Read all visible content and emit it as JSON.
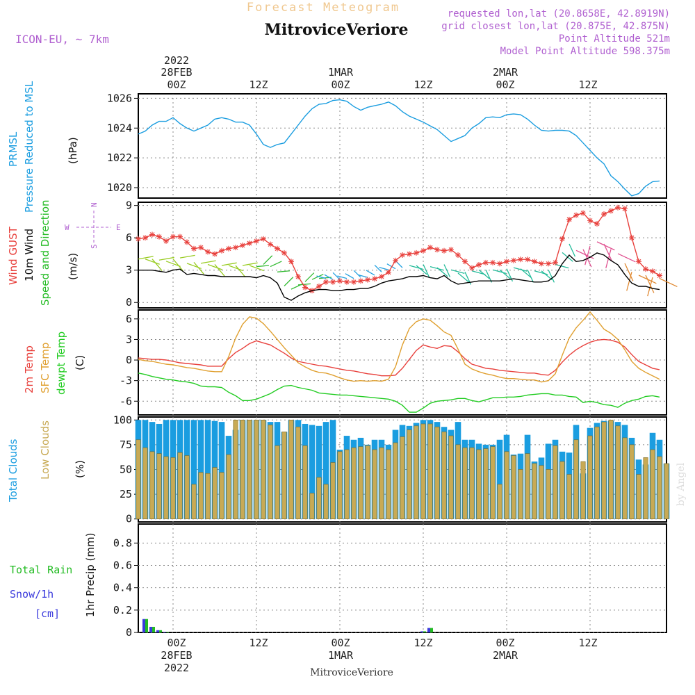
{
  "header": {
    "faint_title": "Forecast Meteogram",
    "station": "MitroviceVeriore",
    "model": "ICON-EU, ~ 7km",
    "requested": "requested lon,lat (20.8658E, 42.8919N)",
    "closest": "grid closest lon,lat (20.875E, 42.875N)",
    "point_alt": "Point Altitude 521m",
    "model_alt": "Model Point Altitude 598.375m",
    "credit": "by Angel",
    "footer_station": "MitroviceVeriore"
  },
  "colors": {
    "pressure": "#1a9de0",
    "gust": "#e8403c",
    "wind": "#000000",
    "dir": "#22bb22",
    "temp": "#e8403c",
    "sfc": "#e0a030",
    "dewpt": "#22cc22",
    "total_cloud": "#1a9de0",
    "low_cloud": "#c8aa55",
    "rain": "#22bb22",
    "snow": "#3a3adc",
    "header_purple": "#b060d0",
    "faint": "#f0c890"
  },
  "time_axis": {
    "top_year": "2022",
    "day1": "28FEB",
    "day2": "1MAR",
    "day3": "2MAR",
    "ticks": [
      "00Z",
      "12Z",
      "00Z",
      "12Z",
      "00Z",
      "12Z"
    ],
    "tick_hours": [
      0,
      12,
      24,
      36,
      48,
      60
    ],
    "start_hour": -5,
    "end_hour": 71
  },
  "chart_data": [
    {
      "type": "line",
      "panel": "pressure",
      "title": "Pressure Reduced to MSL",
      "ylabel_lines": [
        "PRMSL",
        "Pressure Reduced to MSL"
      ],
      "units": "(hPa)",
      "ylim": [
        1019.3,
        1026.3
      ],
      "yticks": [
        1020,
        1022,
        1024,
        1026
      ],
      "x": [
        -5,
        -4,
        -3,
        -2,
        -1,
        0,
        1,
        2,
        3,
        4,
        5,
        6,
        7,
        8,
        9,
        10,
        11,
        12,
        13,
        14,
        15,
        16,
        17,
        18,
        19,
        20,
        21,
        22,
        23,
        24,
        25,
        26,
        27,
        28,
        29,
        30,
        31,
        32,
        33,
        34,
        35,
        36,
        37,
        38,
        39,
        40,
        41,
        42,
        43,
        44,
        45,
        46,
        47,
        48,
        49,
        50,
        51,
        52,
        53,
        54,
        55,
        56,
        57,
        58,
        59,
        60,
        61,
        62,
        63,
        64,
        65,
        66,
        67,
        68,
        69,
        70
      ],
      "series": [
        {
          "name": "PRMSL",
          "values": [
            1023.6,
            1023.8,
            1024.2,
            1024.45,
            1024.45,
            1024.7,
            1024.3,
            1024.0,
            1023.8,
            1024.0,
            1024.2,
            1024.6,
            1024.7,
            1024.6,
            1024.4,
            1024.4,
            1024.2,
            1023.6,
            1022.9,
            1022.7,
            1022.9,
            1023.0,
            1023.6,
            1024.2,
            1024.8,
            1025.3,
            1025.6,
            1025.65,
            1025.85,
            1025.9,
            1025.8,
            1025.45,
            1025.2,
            1025.4,
            1025.5,
            1025.6,
            1025.75,
            1025.5,
            1025.1,
            1024.8,
            1024.6,
            1024.4,
            1024.15,
            1023.9,
            1023.5,
            1023.1,
            1023.3,
            1023.5,
            1024.0,
            1024.3,
            1024.7,
            1024.75,
            1024.7,
            1024.9,
            1024.95,
            1024.9,
            1024.6,
            1024.2,
            1023.85,
            1023.8,
            1023.85,
            1023.85,
            1023.8,
            1023.5,
            1023.0,
            1022.5,
            1022.0,
            1021.6,
            1020.8,
            1020.4,
            1019.9,
            1019.45,
            1019.6,
            1020.1,
            1020.4,
            1020.45
          ]
        }
      ]
    },
    {
      "type": "line",
      "panel": "wind",
      "title": "10m Wind Speed and Direction",
      "ylabel_gust": "Wind GUST",
      "ylabel_wind": "10m Wind",
      "ylabel_dir": "Speed and Direction",
      "units": "(m/s)",
      "compass": {
        "n": "N",
        "s": "S",
        "w": "W",
        "e": "E"
      },
      "ylim": [
        -0.5,
        9.3
      ],
      "yticks": [
        0,
        3,
        6,
        9
      ],
      "x": [
        -5,
        -4,
        -3,
        -2,
        -1,
        0,
        1,
        2,
        3,
        4,
        5,
        6,
        7,
        8,
        9,
        10,
        11,
        12,
        13,
        14,
        15,
        16,
        17,
        18,
        19,
        20,
        21,
        22,
        23,
        24,
        25,
        26,
        27,
        28,
        29,
        30,
        31,
        32,
        33,
        34,
        35,
        36,
        37,
        38,
        39,
        40,
        41,
        42,
        43,
        44,
        45,
        46,
        47,
        48,
        49,
        50,
        51,
        52,
        53,
        54,
        55,
        56,
        57,
        58,
        59,
        60,
        61,
        62,
        63,
        64,
        65,
        66,
        67,
        68,
        69,
        70
      ],
      "series": [
        {
          "name": "Wind GUST",
          "values": [
            5.9,
            6.0,
            6.3,
            6.1,
            5.7,
            6.1,
            6.1,
            5.6,
            5.0,
            5.1,
            4.7,
            4.5,
            4.8,
            5.0,
            5.1,
            5.3,
            5.5,
            5.7,
            5.9,
            5.4,
            5.0,
            4.6,
            3.8,
            2.4,
            1.4,
            1.1,
            1.5,
            1.9,
            1.9,
            2.0,
            1.9,
            1.9,
            2.0,
            2.1,
            2.2,
            2.4,
            2.8,
            3.9,
            4.4,
            4.5,
            4.6,
            4.8,
            5.1,
            4.9,
            4.8,
            4.9,
            4.4,
            3.8,
            3.2,
            3.5,
            3.7,
            3.7,
            3.6,
            3.8,
            3.9,
            4.0,
            4.0,
            3.8,
            3.6,
            3.6,
            3.7,
            5.9,
            7.7,
            8.1,
            8.3,
            7.6,
            7.3,
            8.2,
            8.5,
            8.8,
            8.7,
            6.0,
            3.8,
            3.1,
            2.9,
            2.5
          ]
        },
        {
          "name": "10m Wind",
          "values": [
            3.0,
            3.0,
            3.0,
            2.9,
            2.8,
            3.0,
            3.1,
            2.6,
            2.7,
            2.6,
            2.5,
            2.5,
            2.4,
            2.4,
            2.4,
            2.4,
            2.4,
            2.3,
            2.5,
            2.3,
            1.8,
            0.5,
            0.2,
            0.6,
            0.9,
            1.1,
            1.2,
            1.2,
            1.1,
            1.1,
            1.2,
            1.2,
            1.3,
            1.3,
            1.5,
            1.8,
            2.0,
            2.1,
            2.2,
            2.4,
            2.4,
            2.5,
            2.3,
            2.2,
            2.5,
            2.0,
            1.7,
            1.8,
            1.9,
            2.0,
            2.0,
            2.0,
            2.0,
            2.1,
            2.2,
            2.1,
            2.0,
            1.9,
            1.9,
            2.0,
            2.5,
            3.6,
            4.4,
            3.8,
            3.9,
            4.2,
            4.6,
            4.4,
            3.9,
            3.5,
            2.6,
            1.8,
            1.5,
            1.5,
            1.3,
            1.2
          ]
        }
      ]
    },
    {
      "type": "line",
      "panel": "temp",
      "title": "2m Temp / SFC Temp / dewpt Temp",
      "ylabel_t2m": "2m Temp",
      "ylabel_sfc": "SFC Temp",
      "ylabel_dew": "dewpt Temp",
      "units": "(C)",
      "ylim": [
        -8,
        7.3
      ],
      "yticks": [
        -6,
        -3,
        0,
        3,
        6
      ],
      "ytick_labels": [
        "-6",
        "-3",
        "0",
        "3",
        "6"
      ],
      "x": [
        -5,
        -4,
        -3,
        -2,
        -1,
        0,
        1,
        2,
        3,
        4,
        5,
        6,
        7,
        8,
        9,
        10,
        11,
        12,
        13,
        14,
        15,
        16,
        17,
        18,
        19,
        20,
        21,
        22,
        23,
        24,
        25,
        26,
        27,
        28,
        29,
        30,
        31,
        32,
        33,
        34,
        35,
        36,
        37,
        38,
        39,
        40,
        41,
        42,
        43,
        44,
        45,
        46,
        47,
        48,
        49,
        50,
        51,
        52,
        53,
        54,
        55,
        56,
        57,
        58,
        59,
        60,
        61,
        62,
        63,
        64,
        65,
        66,
        67,
        68,
        69,
        70
      ],
      "series": [
        {
          "name": "2m Temp",
          "values": [
            0.3,
            0.2,
            0.1,
            0.1,
            0.0,
            -0.2,
            -0.4,
            -0.5,
            -0.6,
            -0.7,
            -0.9,
            -0.9,
            -0.9,
            0.2,
            1.1,
            1.7,
            2.4,
            2.8,
            2.5,
            2.2,
            1.6,
            1.0,
            0.3,
            -0.2,
            -0.4,
            -0.6,
            -0.8,
            -0.9,
            -1.1,
            -1.3,
            -1.5,
            -1.6,
            -1.8,
            -2.0,
            -2.1,
            -2.3,
            -2.3,
            -2.2,
            -1.2,
            0.1,
            1.4,
            2.2,
            1.9,
            1.7,
            2.1,
            2.0,
            1.2,
            0.2,
            -0.6,
            -0.9,
            -1.2,
            -1.3,
            -1.5,
            -1.6,
            -1.7,
            -1.8,
            -1.9,
            -1.9,
            -2.1,
            -2.2,
            -1.5,
            -0.3,
            0.7,
            1.5,
            2.1,
            2.6,
            2.9,
            3.0,
            2.9,
            2.6,
            1.9,
            0.8,
            -0.2,
            -0.7,
            -1.2,
            -1.4
          ]
        },
        {
          "name": "SFC Temp",
          "values": [
            0.1,
            -0.1,
            -0.2,
            -0.4,
            -0.6,
            -0.7,
            -0.9,
            -1.1,
            -1.2,
            -1.4,
            -1.6,
            -1.7,
            -1.7,
            0.5,
            3.2,
            5.2,
            6.3,
            6.1,
            5.3,
            4.2,
            3.0,
            1.8,
            0.7,
            -0.4,
            -1.0,
            -1.5,
            -1.8,
            -1.9,
            -2.2,
            -2.6,
            -2.9,
            -3.1,
            -3.0,
            -3.1,
            -3.0,
            -3.1,
            -2.8,
            -1.0,
            2.2,
            4.6,
            5.6,
            6.0,
            5.8,
            5.0,
            4.1,
            3.6,
            1.6,
            -0.6,
            -1.3,
            -1.7,
            -2.0,
            -2.2,
            -2.5,
            -2.7,
            -2.7,
            -2.8,
            -2.9,
            -2.9,
            -3.2,
            -3.0,
            -2.0,
            0.7,
            3.2,
            4.7,
            5.8,
            7.0,
            5.8,
            4.5,
            3.9,
            3.0,
            1.5,
            -0.2,
            -1.2,
            -1.8,
            -2.3,
            -2.8
          ]
        },
        {
          "name": "dewpt Temp",
          "values": [
            -1.9,
            -2.1,
            -2.4,
            -2.6,
            -2.8,
            -2.9,
            -3.1,
            -3.2,
            -3.4,
            -3.8,
            -3.9,
            -3.9,
            -4.0,
            -4.7,
            -5.2,
            -5.9,
            -5.9,
            -5.7,
            -5.3,
            -4.9,
            -4.3,
            -3.8,
            -3.7,
            -4.0,
            -4.2,
            -4.4,
            -4.8,
            -4.9,
            -5.0,
            -5.1,
            -5.1,
            -5.2,
            -5.3,
            -5.4,
            -5.5,
            -5.6,
            -5.7,
            -6.0,
            -6.6,
            -7.6,
            -7.6,
            -7.0,
            -6.3,
            -6.0,
            -5.9,
            -5.8,
            -5.6,
            -5.6,
            -5.9,
            -6.1,
            -5.8,
            -5.5,
            -5.5,
            -5.4,
            -5.4,
            -5.3,
            -5.1,
            -5.0,
            -4.9,
            -4.9,
            -5.1,
            -5.1,
            -5.3,
            -5.4,
            -6.2,
            -6.0,
            -6.2,
            -6.5,
            -6.6,
            -6.9,
            -6.3,
            -5.9,
            -5.7,
            -5.3,
            -5.2,
            -5.4
          ]
        }
      ]
    },
    {
      "type": "bar",
      "panel": "clouds",
      "title": "Total Clouds / Low Clouds",
      "ylabel_total": "Total Clouds",
      "ylabel_low": "Low Clouds",
      "units": "(%)",
      "ylim": [
        -3,
        103
      ],
      "yticks": [
        0,
        25,
        50,
        75,
        100
      ],
      "x": [
        -5,
        -4,
        -3,
        -2,
        -1,
        0,
        1,
        2,
        3,
        4,
        5,
        6,
        7,
        8,
        9,
        10,
        11,
        12,
        13,
        14,
        15,
        16,
        17,
        18,
        19,
        20,
        21,
        22,
        23,
        24,
        25,
        26,
        27,
        28,
        29,
        30,
        31,
        32,
        33,
        34,
        35,
        36,
        37,
        38,
        39,
        40,
        41,
        42,
        43,
        44,
        45,
        46,
        47,
        48,
        49,
        50,
        51,
        52,
        53,
        54,
        55,
        56,
        57,
        58,
        59,
        60,
        61,
        62,
        63,
        64,
        65,
        66,
        67,
        68,
        69,
        70,
        71
      ],
      "series": [
        {
          "name": "Total Clouds",
          "values": [
            100,
            100,
            98,
            96,
            100,
            100,
            100,
            100,
            100,
            100,
            100,
            99,
            98,
            84,
            90,
            100,
            100,
            100,
            100,
            98,
            98,
            88,
            100,
            100,
            96,
            95,
            94,
            98,
            100,
            70,
            84,
            80,
            82,
            75,
            80,
            80,
            75,
            90,
            95,
            94,
            97,
            100,
            100,
            98,
            93,
            90,
            98,
            80,
            80,
            76,
            75,
            75,
            80,
            85,
            65,
            66,
            85,
            58,
            62,
            76,
            80,
            68,
            67,
            95,
            46,
            92,
            97,
            99,
            99,
            98,
            95,
            82,
            60,
            55,
            87,
            80,
            56
          ]
        },
        {
          "name": "Low Clouds",
          "values": [
            80,
            72,
            68,
            66,
            63,
            62,
            67,
            64,
            35,
            47,
            46,
            52,
            47,
            65,
            100,
            100,
            100,
            100,
            100,
            95,
            74,
            88,
            100,
            93,
            74,
            26,
            42,
            35,
            57,
            68,
            70,
            72,
            73,
            74,
            70,
            72,
            70,
            77,
            83,
            90,
            94,
            96,
            96,
            93,
            88,
            84,
            75,
            72,
            72,
            70,
            71,
            73,
            35,
            68,
            64,
            50,
            66,
            56,
            54,
            50,
            74,
            58,
            45,
            80,
            58,
            84,
            93,
            98,
            100,
            94,
            82,
            75,
            45,
            62,
            70,
            63,
            56
          ]
        }
      ]
    },
    {
      "type": "bar",
      "panel": "precip",
      "title": "1hr Precip (mm)",
      "ylabel": "1hr Precip (mm)",
      "legend_rain": "Total Rain",
      "legend_snow": "Snow/1h",
      "legend_snow_unit": "[cm]",
      "ylim": [
        0,
        0.97
      ],
      "yticks": [
        0,
        0.2,
        0.4,
        0.6,
        0.8
      ],
      "ytick_labels": [
        "0",
        "0.2",
        "0.4",
        "0.6",
        "0.8"
      ],
      "x": [
        -4,
        -3,
        -2,
        -1,
        36,
        37
      ],
      "series": [
        {
          "name": "Total Rain",
          "values": [
            0.12,
            0.05,
            0.02,
            0.005,
            0.01,
            0.04
          ]
        },
        {
          "name": "Snow/1h",
          "values": [
            0.12,
            0.05,
            0.02,
            0.005,
            0.01,
            0.04
          ]
        }
      ]
    }
  ]
}
